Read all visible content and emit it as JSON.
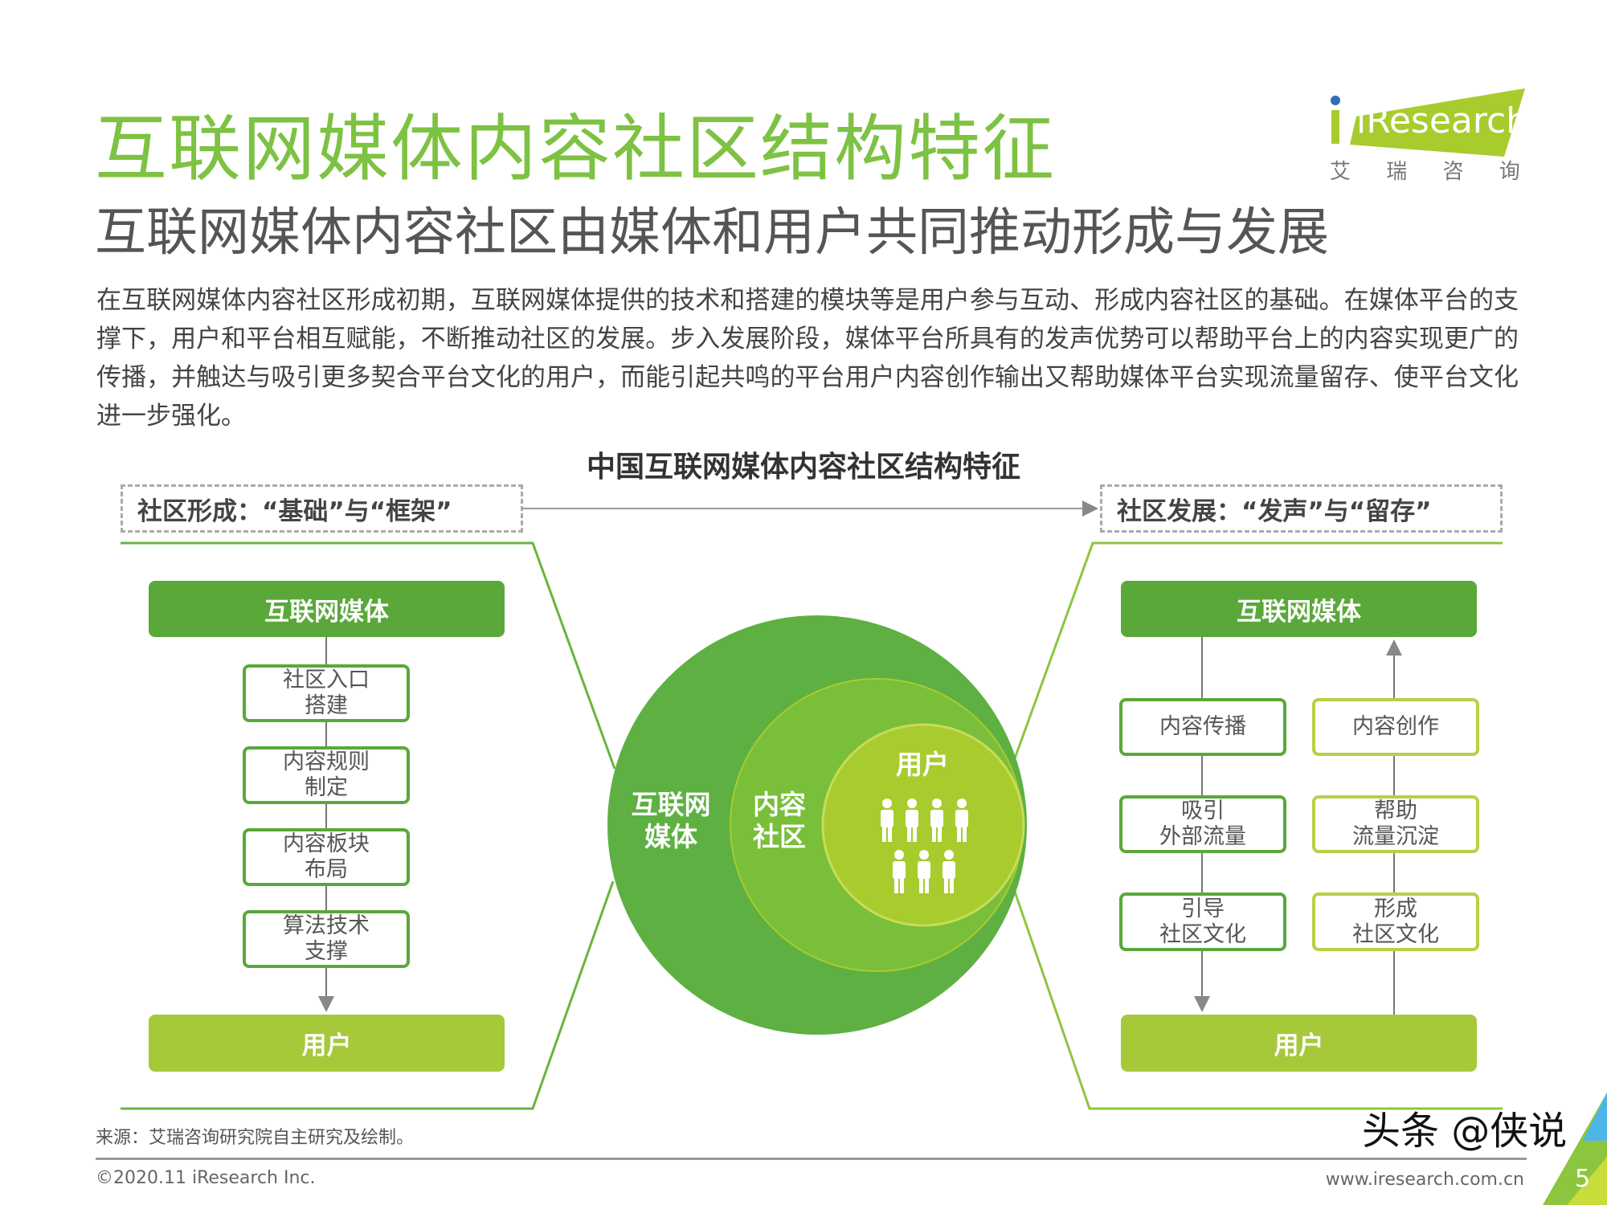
{
  "header": {
    "title": "互联网媒体内容社区结构特征",
    "subtitle": "互联网媒体内容社区由媒体和用户共同推动形成与发展",
    "logo": {
      "text": "iResearch",
      "cn": "艾 瑞 咨 询",
      "color": "#a8cc2e"
    }
  },
  "body": "在互联网媒体内容社区形成初期，互联网媒体提供的技术和搭建的模块等是用户参与互动、形成内容社区的基础。在媒体平台的支撑下，用户和平台相互赋能，不断推动社区的发展。步入发展阶段，媒体平台所具有的发声优势可以帮助平台上的内容实现更广的传播，并触达与吸引更多契合平台文化的用户，而能引起共鸣的平台用户内容创作输出又帮助媒体平台实现流量留存、使平台文化进一步强化。",
  "diagram": {
    "title": "中国互联网媒体内容社区结构特征",
    "left": {
      "stage": "社区形成：“基础”与“框架”",
      "top": "互联网媒体",
      "bottom": "用户",
      "steps": [
        "社区入口\n搭建",
        "内容规则\n制定",
        "内容板块\n布局",
        "算法技术\n支撑"
      ]
    },
    "right": {
      "stage": "社区发展：“发声”与“留存”",
      "top": "互联网媒体",
      "bottom": "用户",
      "down_steps": [
        "内容传播",
        "吸引\n外部流量",
        "引导\n社区文化"
      ],
      "up_steps": [
        "内容创作",
        "帮助\n流量沉淀",
        "形成\n社区文化"
      ]
    },
    "circles": {
      "outer": "互联网\n媒体",
      "middle": "内容\n社区",
      "inner": "用户"
    },
    "colors": {
      "dark": "#5aa83a",
      "mid": "#79bf3a",
      "light": "#a8cc2e"
    }
  },
  "footer": {
    "source": "来源：艾瑞咨询研究院自主研究及绘制。",
    "copyright": "©2020.11 iResearch Inc.",
    "website": "www.iresearch.com.cn",
    "page": "5",
    "watermark": "头条 @侠说"
  }
}
